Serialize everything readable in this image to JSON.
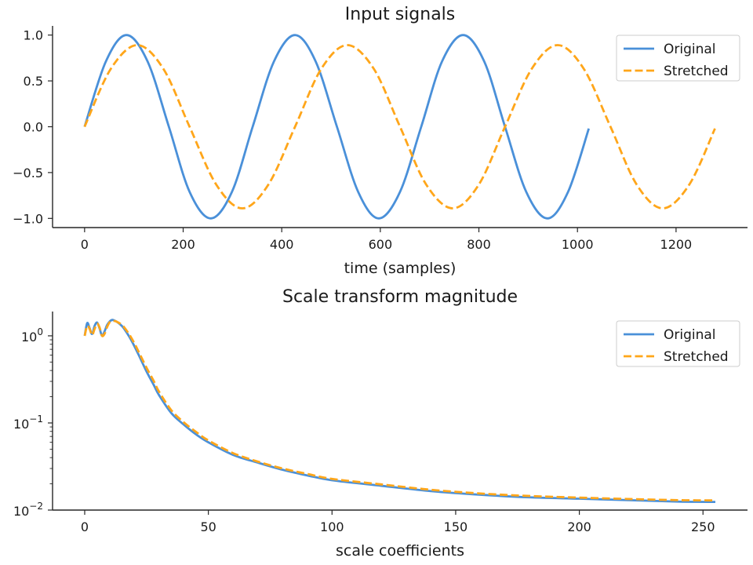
{
  "chart_data": [
    {
      "type": "line",
      "title": "Input signals",
      "xlabel": "time (samples)",
      "ylabel": "",
      "xlim": [
        -65,
        1345
      ],
      "ylim": [
        -1.1,
        1.1
      ],
      "xticks": [
        0,
        200,
        400,
        600,
        800,
        1000,
        1200
      ],
      "xtick_labels": [
        "0",
        "200",
        "400",
        "600",
        "800",
        "1000",
        "1200"
      ],
      "yticks": [
        -1.0,
        -0.5,
        0.0,
        0.5,
        1.0
      ],
      "ytick_labels": [
        "−1.0",
        "−0.5",
        "0.0",
        "0.5",
        "1.0"
      ],
      "grid": false,
      "legend": "top-right",
      "series": [
        {
          "name": "Original",
          "color": "#4a90d9",
          "style": "solid",
          "x": [
            0,
            43,
            85,
            128,
            171,
            213,
            256,
            299,
            341,
            384,
            427,
            469,
            512,
            555,
            597,
            640,
            683,
            725,
            768,
            811,
            853,
            896,
            939,
            981,
            1023
          ],
          "y": [
            0.0,
            0.71,
            1.0,
            0.71,
            0.0,
            -0.71,
            -1.0,
            -0.71,
            0.0,
            0.71,
            1.0,
            0.71,
            0.0,
            -0.71,
            -1.0,
            -0.71,
            0.0,
            0.71,
            1.0,
            0.71,
            0.0,
            -0.71,
            -1.0,
            -0.71,
            -0.02
          ]
        },
        {
          "name": "Stretched",
          "color": "#ffa61a",
          "style": "dashed",
          "x": [
            0,
            53,
            107,
            160,
            213,
            267,
            320,
            373,
            427,
            480,
            533,
            587,
            640,
            693,
            747,
            800,
            853,
            907,
            960,
            1013,
            1067,
            1120,
            1173,
            1227,
            1279
          ],
          "y": [
            0.0,
            0.63,
            0.89,
            0.63,
            0.0,
            -0.63,
            -0.89,
            -0.63,
            0.0,
            0.63,
            0.89,
            0.63,
            0.0,
            -0.63,
            -0.89,
            -0.63,
            0.0,
            0.63,
            0.89,
            0.63,
            0.0,
            -0.63,
            -0.89,
            -0.63,
            -0.02
          ]
        }
      ]
    },
    {
      "type": "line",
      "title": "Scale transform magnitude",
      "xlabel": "scale coefficients",
      "ylabel": "",
      "yscale": "log",
      "xlim": [
        -13,
        268
      ],
      "ylim": [
        0.01,
        1.9
      ],
      "xticks": [
        0,
        50,
        100,
        150,
        200,
        250
      ],
      "xtick_labels": [
        "0",
        "50",
        "100",
        "150",
        "200",
        "250"
      ],
      "yticks": [
        0.01,
        0.1,
        1
      ],
      "ytick_labels": [
        {
          "base": "10",
          "exp": "−2"
        },
        {
          "base": "10",
          "exp": "−1"
        },
        {
          "base": "10",
          "exp": "0"
        }
      ],
      "grid": false,
      "legend": "top-right",
      "series": [
        {
          "name": "Original",
          "color": "#4a90d9",
          "style": "solid",
          "x": [
            0,
            1,
            2,
            3,
            4,
            5,
            6,
            7,
            8,
            9,
            10,
            11,
            12,
            13,
            14,
            15,
            16,
            18,
            20,
            22,
            25,
            28,
            30,
            35,
            40,
            45,
            50,
            60,
            70,
            80,
            90,
            100,
            120,
            140,
            160,
            180,
            200,
            220,
            240,
            255
          ],
          "y": [
            1.0,
            1.4,
            1.22,
            1.05,
            1.3,
            1.42,
            1.22,
            1.0,
            1.12,
            1.32,
            1.45,
            1.52,
            1.5,
            1.45,
            1.38,
            1.3,
            1.2,
            0.98,
            0.77,
            0.59,
            0.39,
            0.27,
            0.21,
            0.13,
            0.096,
            0.074,
            0.06,
            0.043,
            0.035,
            0.029,
            0.025,
            0.022,
            0.019,
            0.0165,
            0.015,
            0.014,
            0.0135,
            0.013,
            0.0125,
            0.0124
          ]
        },
        {
          "name": "Stretched",
          "color": "#ffa61a",
          "style": "dashed",
          "x": [
            0,
            1,
            2,
            3,
            4,
            5,
            6,
            7,
            8,
            9,
            10,
            11,
            12,
            13,
            14,
            15,
            16,
            18,
            20,
            22,
            25,
            28,
            30,
            35,
            40,
            45,
            50,
            60,
            70,
            80,
            90,
            100,
            120,
            140,
            160,
            180,
            200,
            220,
            240,
            255
          ],
          "y": [
            1.0,
            1.3,
            1.2,
            1.02,
            1.2,
            1.38,
            1.25,
            1.0,
            1.05,
            1.25,
            1.42,
            1.48,
            1.48,
            1.45,
            1.4,
            1.33,
            1.25,
            1.04,
            0.83,
            0.64,
            0.43,
            0.3,
            0.23,
            0.14,
            0.102,
            0.079,
            0.063,
            0.045,
            0.036,
            0.03,
            0.026,
            0.0228,
            0.0197,
            0.0171,
            0.0155,
            0.0145,
            0.0139,
            0.0134,
            0.013,
            0.0129
          ]
        }
      ]
    }
  ]
}
